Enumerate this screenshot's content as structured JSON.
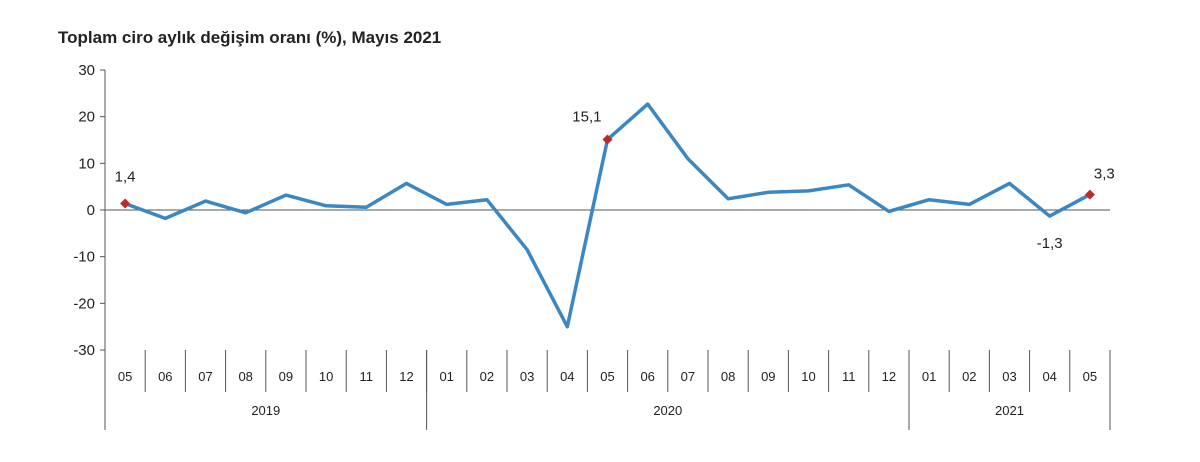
{
  "chart_data": {
    "type": "line",
    "title": "Toplam ciro aylık değişim oranı (%), Mayıs 2021",
    "xlabel": "",
    "ylabel": "",
    "ylim": [
      -30,
      30
    ],
    "yticks": [
      "30",
      "20",
      "10",
      "0",
      "-10",
      "-20",
      "-30"
    ],
    "categories": [
      "05",
      "06",
      "07",
      "08",
      "09",
      "10",
      "11",
      "12",
      "01",
      "02",
      "03",
      "04",
      "05",
      "06",
      "07",
      "08",
      "09",
      "10",
      "11",
      "12",
      "01",
      "02",
      "03",
      "04",
      "05"
    ],
    "years": [
      {
        "label": "2019",
        "start": 0,
        "end": 7
      },
      {
        "label": "2020",
        "start": 8,
        "end": 19
      },
      {
        "label": "2021",
        "start": 20,
        "end": 24
      }
    ],
    "series": [
      {
        "name": "Toplam ciro aylık değişim oranı",
        "color": "#3a87c4",
        "values": [
          1.4,
          -1.8,
          1.9,
          -0.6,
          3.2,
          0.9,
          0.6,
          5.7,
          1.2,
          2.2,
          -8.5,
          -25.0,
          15.1,
          22.7,
          11.0,
          2.4,
          3.8,
          4.1,
          5.4,
          -0.3,
          2.2,
          1.2,
          5.7,
          -1.3,
          3.3
        ]
      }
    ],
    "markers": [
      {
        "index": 0,
        "label": "1,4",
        "position": "above"
      },
      {
        "index": 12,
        "label": "15,1",
        "position": "above-left"
      },
      {
        "index": 24,
        "label": "3,3",
        "position": "above-right"
      },
      {
        "index": 23,
        "label": "-1,3",
        "position": "below",
        "marker": false
      }
    ],
    "marker_color": "#c0292b"
  }
}
